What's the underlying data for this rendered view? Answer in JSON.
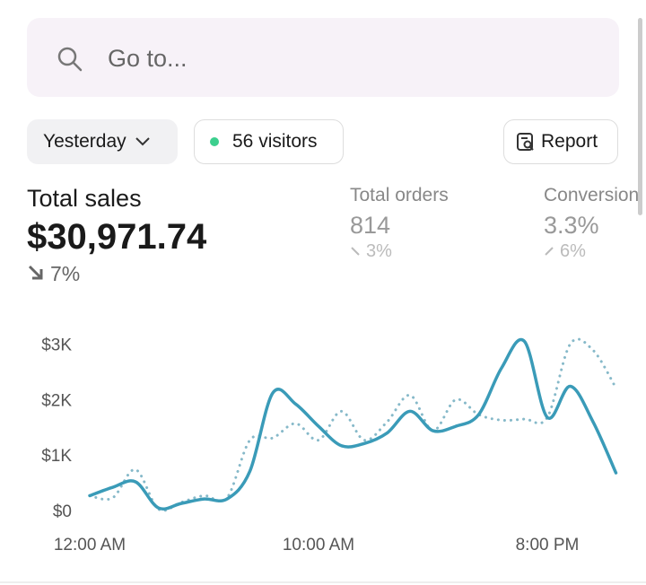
{
  "search": {
    "placeholder": "Go to..."
  },
  "filters": {
    "date": "Yesterday",
    "visitors": "56 visitors",
    "report": "Report"
  },
  "metrics": [
    {
      "label": "Total sales",
      "value": "$30,971.74",
      "change": "7%"
    },
    {
      "label": "Total orders",
      "value": "814",
      "change": "3%"
    },
    {
      "label": "Conversion",
      "value": "3.3%",
      "change": "6%"
    }
  ],
  "chart_data": {
    "type": "line",
    "categories": [
      "12:00 AM",
      null,
      null,
      null,
      null,
      null,
      null,
      null,
      null,
      null,
      "10:00 AM",
      null,
      null,
      null,
      null,
      null,
      null,
      null,
      null,
      null,
      "8:00 PM",
      null,
      null,
      null
    ],
    "series": [
      {
        "color": "#3a9bb8",
        "style": "solid",
        "values": [
          300,
          450,
          550,
          80,
          160,
          240,
          240,
          740,
          2150,
          1950,
          1550,
          1200,
          1240,
          1430,
          1820,
          1470,
          1550,
          1760,
          2600,
          3080,
          1710,
          2270,
          1630,
          710
        ]
      },
      {
        "color": "#86b9c9",
        "style": "dotted",
        "values": [
          300,
          260,
          770,
          60,
          180,
          300,
          260,
          1300,
          1340,
          1600,
          1300,
          1820,
          1300,
          1630,
          2110,
          1470,
          2030,
          1760,
          1660,
          1680,
          1710,
          3030,
          2920,
          2240
        ]
      }
    ],
    "ylim": [
      0,
      3200
    ],
    "yticks": [
      {
        "value": 0,
        "label": "$0"
      },
      {
        "value": 1000,
        "label": "$1K"
      },
      {
        "value": 2000,
        "label": "$2K"
      },
      {
        "value": 3000,
        "label": "$3K"
      }
    ],
    "grid": false
  }
}
